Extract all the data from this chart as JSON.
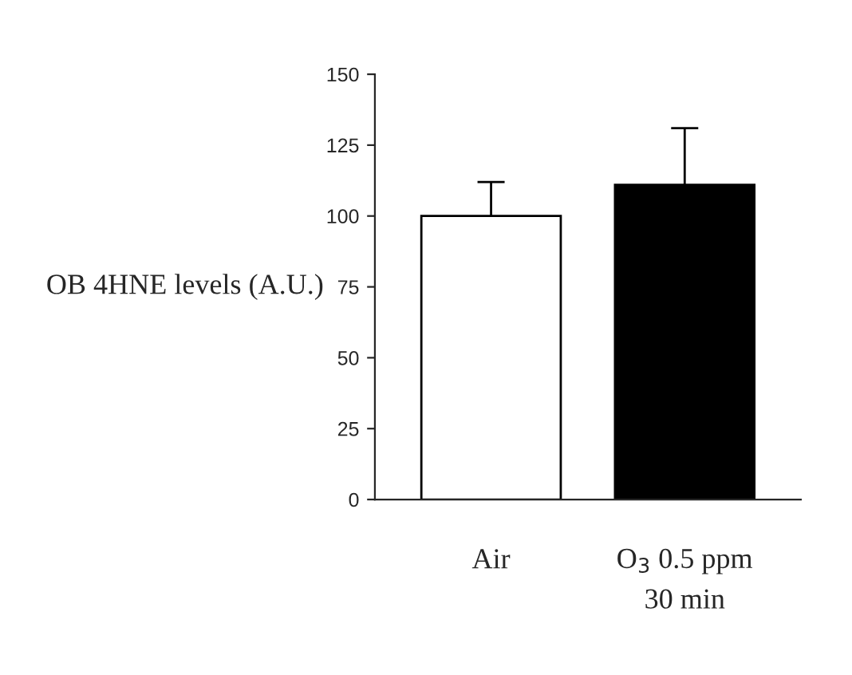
{
  "chart_data": {
    "type": "bar",
    "ylabel": "OB 4HNE levels (A.U.)",
    "categories": [
      "Air",
      "O$_{3}$ 0.5 ppm\n30 min"
    ],
    "values": [
      100,
      111
    ],
    "colors": [
      "#ffffff",
      "#000000"
    ],
    "errors": [
      [
        100,
        112
      ],
      [
        111,
        131
      ]
    ],
    "ylim": [
      0,
      150
    ],
    "yticks": [
      0,
      25,
      50,
      75,
      100,
      125,
      150
    ],
    "grid": false,
    "legend": false
  }
}
